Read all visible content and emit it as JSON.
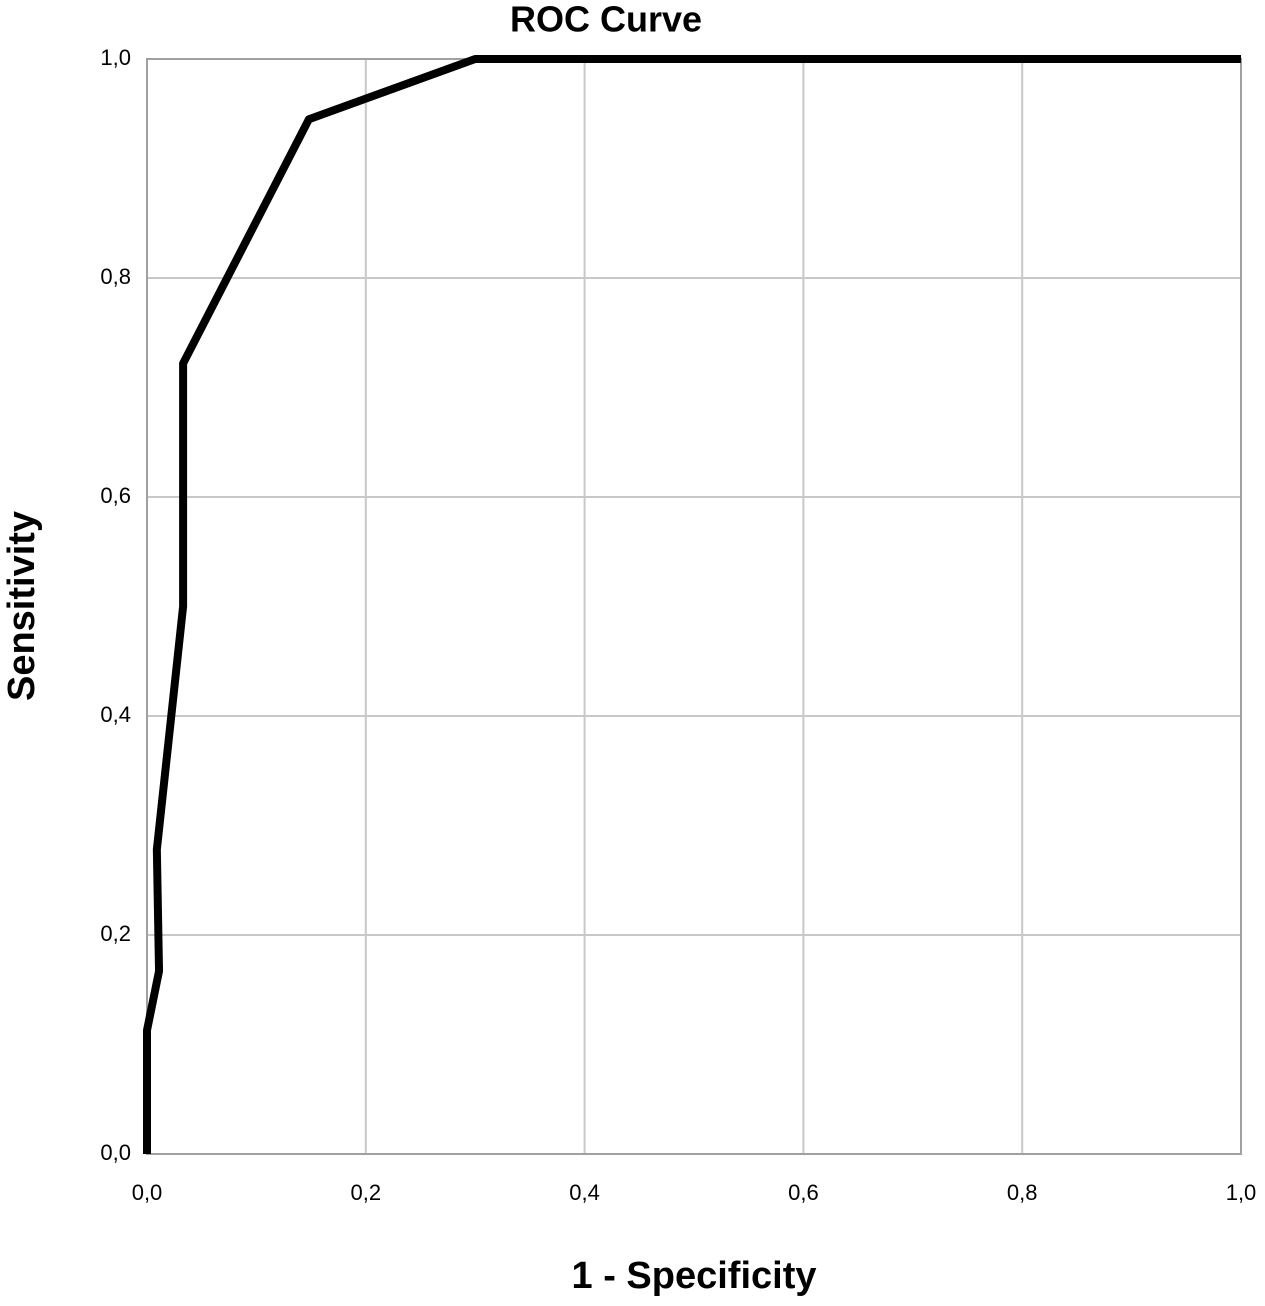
{
  "chart_data": {
    "type": "line",
    "title": "ROC Curve",
    "x_label": "1 - Specificity",
    "y_label": "Sensitivity",
    "x": [
      0,
      0,
      0.011,
      0.009,
      0.033,
      0.033,
      0.148,
      0.3,
      1.0
    ],
    "values": [
      0,
      0.113,
      0.167,
      0.278,
      0.5,
      0.722,
      0.945,
      1.0,
      1.0
    ],
    "color": "#000000",
    "xlim": [
      0,
      1
    ],
    "ylim": [
      0,
      1
    ],
    "xticks": [
      {
        "value": 0,
        "label": "0,0"
      },
      {
        "value": 0.2,
        "label": "0,2"
      },
      {
        "value": 0.4,
        "label": "0,4"
      },
      {
        "value": 0.6,
        "label": "0,6"
      },
      {
        "value": 0.8,
        "label": "0,8"
      },
      {
        "value": 1,
        "label": "1,0"
      }
    ],
    "yticks": [
      {
        "value": 0,
        "label": "0,0"
      },
      {
        "value": 0.2,
        "label": "0,2"
      },
      {
        "value": 0.4,
        "label": "0,4"
      },
      {
        "value": 0.6,
        "label": "0,6"
      },
      {
        "value": 0.8,
        "label": "0,8"
      },
      {
        "value": 1,
        "label": "1,0"
      }
    ],
    "grid": true
  }
}
